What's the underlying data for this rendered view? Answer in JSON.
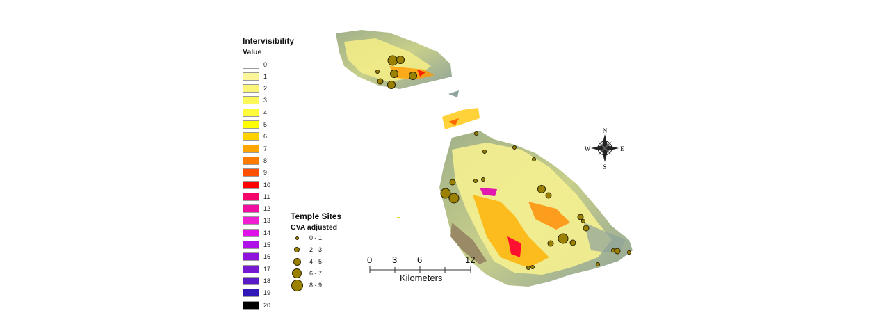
{
  "legend": {
    "title": "Intervisibility",
    "subtitle": "Value",
    "classes": [
      {
        "label": "0",
        "color": "#ffffff"
      },
      {
        "label": "1",
        "color": "#fbf59a"
      },
      {
        "label": "2",
        "color": "#fbf57a"
      },
      {
        "label": "3",
        "color": "#fdf85a"
      },
      {
        "label": "4",
        "color": "#fefb3a"
      },
      {
        "label": "5",
        "color": "#ffff00"
      },
      {
        "label": "6",
        "color": "#ffd200"
      },
      {
        "label": "7",
        "color": "#ffa500"
      },
      {
        "label": "8",
        "color": "#ff7b00"
      },
      {
        "label": "9",
        "color": "#ff4f00"
      },
      {
        "label": "10",
        "color": "#ff0000"
      },
      {
        "label": "11",
        "color": "#f5056a"
      },
      {
        "label": "12",
        "color": "#f00fa0"
      },
      {
        "label": "13",
        "color": "#f01ed2"
      },
      {
        "label": "14",
        "color": "#e010ea"
      },
      {
        "label": "15",
        "color": "#b010e8"
      },
      {
        "label": "16",
        "color": "#8f12dc"
      },
      {
        "label": "17",
        "color": "#7418d2"
      },
      {
        "label": "18",
        "color": "#5a1ac8"
      },
      {
        "label": "19",
        "color": "#3018b8"
      },
      {
        "label": "20",
        "color": "#000000"
      }
    ]
  },
  "sites_legend": {
    "title": "Temple Sites",
    "subtitle": "CVA adjusted",
    "fill_color": "#9a8200",
    "classes": [
      {
        "label": "0 - 1"
      },
      {
        "label": "2 - 3"
      },
      {
        "label": "4 - 5"
      },
      {
        "label": "6 - 7"
      },
      {
        "label": "8 - 9"
      }
    ]
  },
  "scale_bar": {
    "ticks": [
      "0",
      "3",
      "6",
      "12"
    ],
    "unit": "Kilometers"
  },
  "north_arrow": {
    "n": "N",
    "s": "S",
    "e": "E",
    "w": "W"
  }
}
